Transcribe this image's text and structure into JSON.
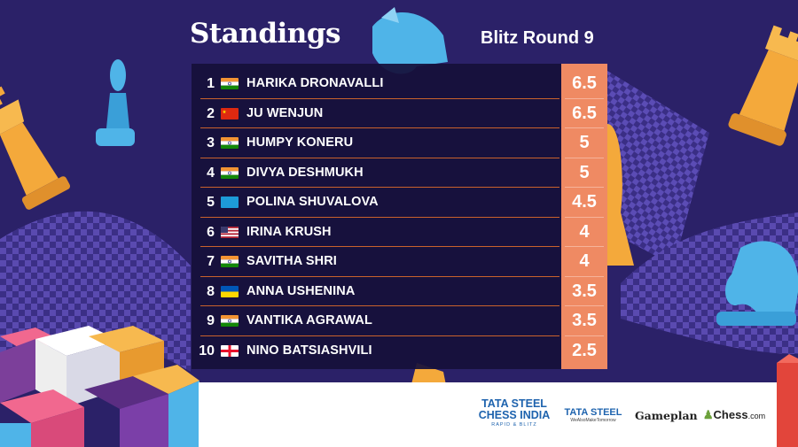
{
  "header": {
    "title": "Standings",
    "subtitle": "Blitz Round 9"
  },
  "colors": {
    "background": "#2b2168",
    "table_bg": "#16103a",
    "score_bg": "#ef8a63",
    "row_separator": "#c9622c"
  },
  "standings": [
    {
      "rank": "1",
      "flag": "flag-india",
      "name": "HARIKA DRONAVALLI",
      "score": "6.5"
    },
    {
      "rank": "2",
      "flag": "flag-china",
      "name": "JU WENJUN",
      "score": "6.5"
    },
    {
      "rank": "3",
      "flag": "flag-india",
      "name": "HUMPY KONERU",
      "score": "5"
    },
    {
      "rank": "4",
      "flag": "flag-india",
      "name": "DIVYA DESHMUKH",
      "score": "5"
    },
    {
      "rank": "5",
      "flag": "flag-fide",
      "name": "POLINA SHUVALOVA",
      "score": "4.5"
    },
    {
      "rank": "6",
      "flag": "flag-usa",
      "name": "IRINA KRUSH",
      "score": "4"
    },
    {
      "rank": "7",
      "flag": "flag-india",
      "name": "SAVITHA SHRI",
      "score": "4"
    },
    {
      "rank": "8",
      "flag": "flag-ukraine",
      "name": "ANNA USHENINA",
      "score": "3.5"
    },
    {
      "rank": "9",
      "flag": "flag-india",
      "name": "VANTIKA AGRAWAL",
      "score": "3.5"
    },
    {
      "rank": "10",
      "flag": "flag-georgia",
      "name": "NINO BATSIASHVILI",
      "score": "2.5"
    }
  ],
  "sponsors": {
    "tata_chess_india_line1": "TATA STEEL",
    "tata_chess_india_line2": "CHESS INDIA",
    "tata_chess_india_line3": "RAPID & BLITZ",
    "tata_steel_line1": "TATA STEEL",
    "tata_steel_line2": "WeAlsoMakeTomorrow",
    "gameplan": "Gameplan",
    "chesscom_pawn": "♟",
    "chesscom_name": "Chess",
    "chesscom_suffix": ".com"
  }
}
